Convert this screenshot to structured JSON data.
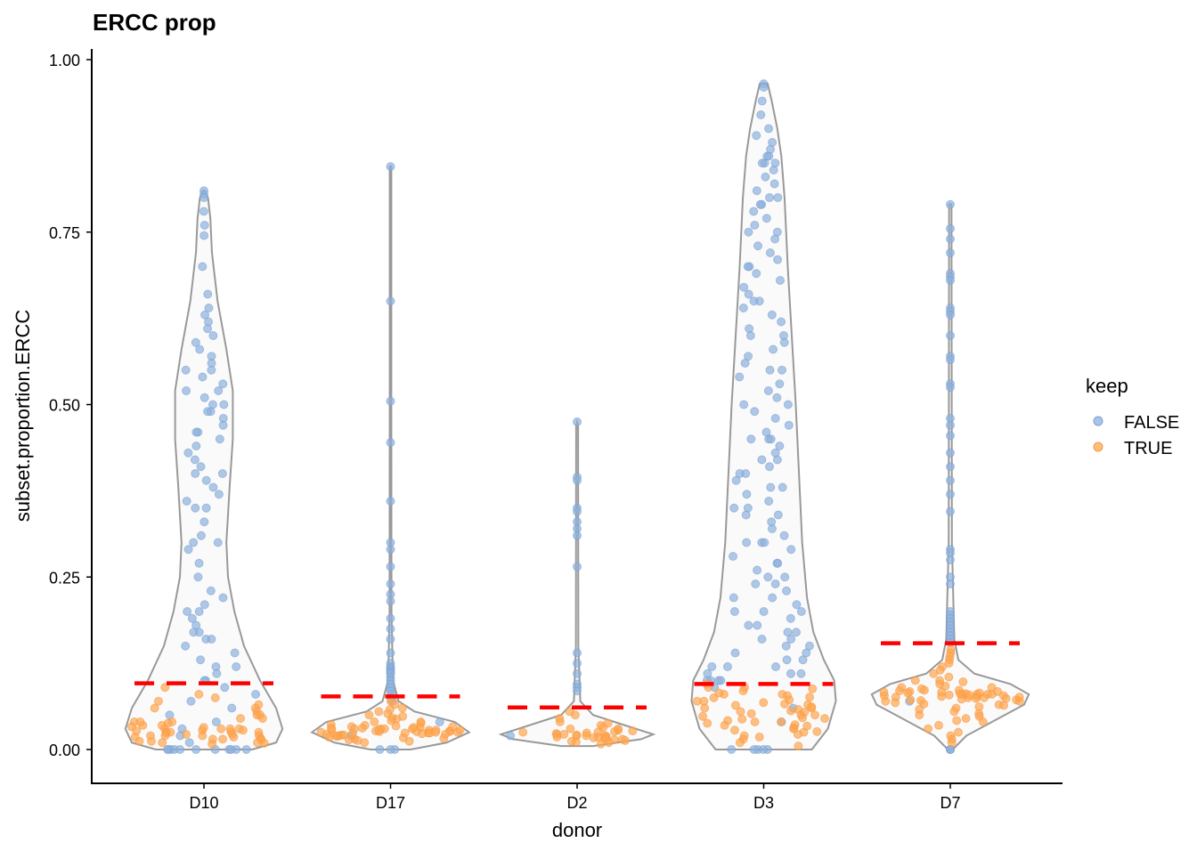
{
  "chart_data": {
    "type": "violin",
    "title": "ERCC prop",
    "xlabel": "donor",
    "ylabel": "subset.proportion.ERCC",
    "ylim": [
      -0.05,
      1.02
    ],
    "yticks": [
      0.0,
      0.25,
      0.5,
      0.75,
      1.0
    ],
    "ytick_labels": [
      "0.00",
      "0.25",
      "0.50",
      "0.75",
      "1.00"
    ],
    "grid": false,
    "categories": [
      "D10",
      "D17",
      "D2",
      "D3",
      "D7"
    ],
    "legend": {
      "title": "keep",
      "placement": "right",
      "entries": [
        {
          "label": "FALSE",
          "color": "#8DB0DD"
        },
        {
          "label": "TRUE",
          "color": "#FFA54F"
        }
      ]
    },
    "threshold_color": "#FF0000",
    "violin_stroke": "#999999",
    "thresholds": [
      0.096,
      0.077,
      0.061,
      0.095,
      0.154
    ],
    "violins": [
      {
        "donor": "D10",
        "profile": [
          [
            0,
            0.6
          ],
          [
            0.01,
            0.9
          ],
          [
            0.03,
            0.98
          ],
          [
            0.06,
            0.9
          ],
          [
            0.1,
            0.7
          ],
          [
            0.15,
            0.5
          ],
          [
            0.2,
            0.38
          ],
          [
            0.25,
            0.3
          ],
          [
            0.3,
            0.28
          ],
          [
            0.38,
            0.32
          ],
          [
            0.45,
            0.36
          ],
          [
            0.52,
            0.36
          ],
          [
            0.58,
            0.28
          ],
          [
            0.65,
            0.17
          ],
          [
            0.72,
            0.1
          ],
          [
            0.77,
            0.08
          ],
          [
            0.8,
            0.05
          ],
          [
            0.81,
            0
          ]
        ]
      },
      {
        "donor": "D17",
        "profile": [
          [
            0,
            0.25
          ],
          [
            0.01,
            0.7
          ],
          [
            0.025,
            0.98
          ],
          [
            0.04,
            0.8
          ],
          [
            0.055,
            0.3
          ],
          [
            0.07,
            0.1
          ],
          [
            0.1,
            0.03
          ],
          [
            0.2,
            0.012
          ],
          [
            0.5,
            0.01
          ],
          [
            0.845,
            0.01
          ],
          [
            0.846,
            0
          ]
        ]
      },
      {
        "donor": "D2",
        "profile": [
          [
            0.005,
            0.2
          ],
          [
            0.015,
            0.8
          ],
          [
            0.022,
            0.95
          ],
          [
            0.035,
            0.6
          ],
          [
            0.05,
            0.2
          ],
          [
            0.07,
            0.04
          ],
          [
            0.15,
            0.015
          ],
          [
            0.47,
            0.012
          ],
          [
            0.475,
            0
          ]
        ]
      },
      {
        "donor": "D3",
        "profile": [
          [
            0,
            0.6
          ],
          [
            0.03,
            0.8
          ],
          [
            0.07,
            0.9
          ],
          [
            0.1,
            0.88
          ],
          [
            0.13,
            0.75
          ],
          [
            0.17,
            0.62
          ],
          [
            0.22,
            0.54
          ],
          [
            0.3,
            0.48
          ],
          [
            0.4,
            0.44
          ],
          [
            0.5,
            0.4
          ],
          [
            0.6,
            0.35
          ],
          [
            0.7,
            0.3
          ],
          [
            0.8,
            0.26
          ],
          [
            0.86,
            0.22
          ],
          [
            0.9,
            0.17
          ],
          [
            0.94,
            0.1
          ],
          [
            0.965,
            0.05
          ],
          [
            0.966,
            0
          ]
        ]
      },
      {
        "donor": "D7",
        "profile": [
          [
            0,
            0.03
          ],
          [
            0.02,
            0.2
          ],
          [
            0.045,
            0.6
          ],
          [
            0.065,
            0.92
          ],
          [
            0.08,
            0.98
          ],
          [
            0.095,
            0.75
          ],
          [
            0.11,
            0.3
          ],
          [
            0.13,
            0.1
          ],
          [
            0.16,
            0.05
          ],
          [
            0.3,
            0.02
          ],
          [
            0.79,
            0.015
          ],
          [
            0.791,
            0
          ]
        ]
      }
    ],
    "points": [
      {
        "donor": "D10",
        "FALSE": [
          0.81,
          0.805,
          0.8,
          0.78,
          0.76,
          0.745,
          0.7,
          0.66,
          0.64,
          0.63,
          0.62,
          0.61,
          0.6,
          0.59,
          0.58,
          0.57,
          0.56,
          0.55,
          0.55,
          0.54,
          0.53,
          0.52,
          0.52,
          0.51,
          0.5,
          0.5,
          0.49,
          0.49,
          0.48,
          0.47,
          0.46,
          0.46,
          0.45,
          0.44,
          0.43,
          0.42,
          0.41,
          0.4,
          0.4,
          0.39,
          0.38,
          0.37,
          0.36,
          0.35,
          0.35,
          0.33,
          0.31,
          0.3,
          0.3,
          0.29,
          0.27,
          0.25,
          0.23,
          0.22,
          0.21,
          0.2,
          0.2,
          0.19,
          0.18,
          0.17,
          0.17,
          0.16,
          0.16,
          0.15,
          0.14,
          0.13,
          0.12,
          0.12,
          0.11,
          0.1,
          0.1,
          0.09,
          0.08,
          0.07,
          0.06,
          0.05,
          0.04,
          0.03,
          0.02,
          0.01,
          0.0,
          0.0,
          0.0,
          0.0,
          0.0,
          0.0,
          0.0,
          0.0,
          0.0,
          0.0,
          0.0
        ],
        "TRUE": [
          0.09,
          0.08,
          0.075,
          0.07,
          0.065,
          0.06,
          0.055,
          0.05,
          0.05,
          0.045,
          0.04,
          0.04,
          0.038,
          0.035,
          0.033,
          0.03,
          0.03,
          0.03,
          0.028,
          0.026,
          0.025,
          0.025,
          0.024,
          0.022,
          0.02,
          0.02,
          0.02,
          0.018,
          0.016,
          0.015,
          0.014,
          0.012,
          0.01,
          0.01,
          0.009,
          0.008,
          0.03,
          0.025,
          0.02,
          0.035,
          0.015,
          0.04,
          0.028,
          0.022,
          0.018,
          0.032,
          0.027,
          0.012,
          0.045,
          0.06
        ]
      },
      {
        "donor": "D17",
        "FALSE": [
          0.845,
          0.65,
          0.505,
          0.445,
          0.36,
          0.3,
          0.29,
          0.265,
          0.24,
          0.225,
          0.215,
          0.19,
          0.175,
          0.16,
          0.14,
          0.125,
          0.12,
          0.118,
          0.115,
          0.112,
          0.11,
          0.105,
          0.1,
          0.095,
          0.09,
          0.085,
          0.08,
          0.075,
          0.07,
          0.04,
          0.02,
          0.0,
          0.0,
          0.0
        ],
        "TRUE": [
          0.07,
          0.065,
          0.06,
          0.058,
          0.055,
          0.052,
          0.05,
          0.048,
          0.046,
          0.044,
          0.042,
          0.04,
          0.04,
          0.038,
          0.036,
          0.035,
          0.034,
          0.033,
          0.032,
          0.031,
          0.03,
          0.03,
          0.03,
          0.029,
          0.028,
          0.028,
          0.027,
          0.026,
          0.026,
          0.025,
          0.025,
          0.024,
          0.024,
          0.023,
          0.022,
          0.022,
          0.021,
          0.02,
          0.02,
          0.019,
          0.018,
          0.017,
          0.016,
          0.015,
          0.014,
          0.013,
          0.012,
          0.01,
          0.03,
          0.028,
          0.026,
          0.032,
          0.024,
          0.027,
          0.029,
          0.031,
          0.023,
          0.025,
          0.033,
          0.021
        ]
      },
      {
        "donor": "D2",
        "FALSE": [
          0.475,
          0.395,
          0.39,
          0.35,
          0.345,
          0.33,
          0.32,
          0.31,
          0.265,
          0.14,
          0.125,
          0.11,
          0.095,
          0.09,
          0.085,
          0.02
        ],
        "TRUE": [
          0.055,
          0.05,
          0.045,
          0.04,
          0.038,
          0.035,
          0.032,
          0.03,
          0.028,
          0.027,
          0.026,
          0.025,
          0.024,
          0.023,
          0.022,
          0.021,
          0.02,
          0.02,
          0.019,
          0.018,
          0.017,
          0.016,
          0.015,
          0.014,
          0.013,
          0.012,
          0.011,
          0.01,
          0.008,
          0.022,
          0.025,
          0.018,
          0.03,
          0.02,
          0.016
        ]
      },
      {
        "donor": "D3",
        "FALSE": [
          0.965,
          0.96,
          0.94,
          0.92,
          0.9,
          0.89,
          0.88,
          0.87,
          0.86,
          0.86,
          0.85,
          0.85,
          0.84,
          0.83,
          0.82,
          0.81,
          0.8,
          0.79,
          0.79,
          0.78,
          0.77,
          0.76,
          0.75,
          0.74,
          0.73,
          0.72,
          0.71,
          0.7,
          0.69,
          0.68,
          0.67,
          0.66,
          0.65,
          0.64,
          0.63,
          0.62,
          0.61,
          0.6,
          0.59,
          0.58,
          0.57,
          0.56,
          0.55,
          0.54,
          0.53,
          0.52,
          0.51,
          0.5,
          0.49,
          0.48,
          0.47,
          0.46,
          0.45,
          0.44,
          0.43,
          0.42,
          0.41,
          0.4,
          0.39,
          0.38,
          0.37,
          0.36,
          0.35,
          0.34,
          0.33,
          0.32,
          0.31,
          0.3,
          0.29,
          0.28,
          0.27,
          0.26,
          0.25,
          0.24,
          0.23,
          0.22,
          0.21,
          0.2,
          0.19,
          0.18,
          0.17,
          0.16,
          0.15,
          0.14,
          0.13,
          0.12,
          0.11,
          0.1,
          0.09,
          0.85,
          0.8,
          0.75,
          0.7,
          0.65,
          0.6,
          0.55,
          0.5,
          0.45,
          0.4,
          0.35,
          0.3,
          0.25,
          0.2,
          0.18,
          0.16,
          0.14,
          0.12,
          0.11,
          0.1,
          0.45,
          0.42,
          0.38,
          0.34,
          0.3,
          0.27,
          0.24,
          0.22,
          0.2,
          0.17,
          0.15,
          0.13,
          0.12,
          0.11,
          0.1,
          0.1,
          0.06,
          0.04,
          0.0,
          0.0,
          0.0,
          0.0,
          0.0
        ],
        "TRUE": [
          0.095,
          0.09,
          0.09,
          0.085,
          0.08,
          0.08,
          0.075,
          0.07,
          0.07,
          0.065,
          0.06,
          0.06,
          0.058,
          0.055,
          0.052,
          0.05,
          0.05,
          0.048,
          0.045,
          0.042,
          0.04,
          0.04,
          0.038,
          0.035,
          0.032,
          0.03,
          0.028,
          0.025,
          0.022,
          0.02,
          0.018,
          0.015,
          0.01,
          0.005,
          0.088,
          0.078,
          0.068,
          0.062,
          0.054,
          0.046,
          0.036,
          0.026,
          0.072,
          0.064,
          0.056,
          0.044,
          0.034,
          0.082,
          0.076,
          0.066
        ]
      },
      {
        "donor": "D7",
        "FALSE": [
          0.79,
          0.755,
          0.74,
          0.72,
          0.69,
          0.685,
          0.68,
          0.64,
          0.635,
          0.63,
          0.6,
          0.57,
          0.565,
          0.53,
          0.525,
          0.48,
          0.47,
          0.455,
          0.43,
          0.41,
          0.39,
          0.37,
          0.345,
          0.29,
          0.285,
          0.275,
          0.25,
          0.24,
          0.2,
          0.195,
          0.19,
          0.185,
          0.18,
          0.175,
          0.17,
          0.165,
          0.16,
          0.155,
          0.07,
          0.0,
          0.0,
          0.0
        ],
        "TRUE": [
          0.145,
          0.14,
          0.135,
          0.13,
          0.125,
          0.12,
          0.115,
          0.11,
          0.105,
          0.1,
          0.1,
          0.098,
          0.095,
          0.092,
          0.09,
          0.09,
          0.088,
          0.086,
          0.085,
          0.084,
          0.083,
          0.082,
          0.081,
          0.08,
          0.08,
          0.08,
          0.079,
          0.078,
          0.077,
          0.076,
          0.075,
          0.075,
          0.074,
          0.073,
          0.072,
          0.071,
          0.07,
          0.07,
          0.068,
          0.066,
          0.065,
          0.064,
          0.062,
          0.06,
          0.058,
          0.055,
          0.052,
          0.05,
          0.048,
          0.045,
          0.042,
          0.04,
          0.035,
          0.03,
          0.025,
          0.02,
          0.015,
          0.01,
          0.08,
          0.078,
          0.082,
          0.076,
          0.084,
          0.074,
          0.086,
          0.072,
          0.079,
          0.081,
          0.077,
          0.083
        ]
      }
    ]
  }
}
